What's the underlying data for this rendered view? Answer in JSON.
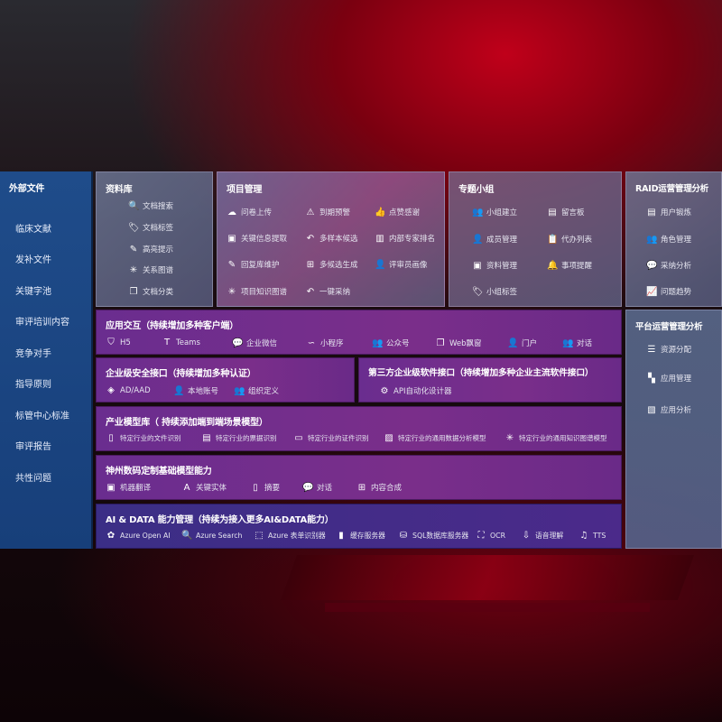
{
  "external": {
    "title": "外部文件",
    "items": [
      "临床文献",
      "发补文件",
      "关键字池",
      "审评培训内容",
      "竞争对手",
      "指导原则",
      "标管中心标准",
      "审评报告",
      "共性问题"
    ]
  },
  "library": {
    "title": "资料库",
    "items": [
      {
        "icon": "doc-search-icon",
        "label": "文档搜索"
      },
      {
        "icon": "tag-icon",
        "label": "文档标签"
      },
      {
        "icon": "pen-icon",
        "label": "高亮提示"
      },
      {
        "icon": "graph-icon",
        "label": "关系图谱"
      },
      {
        "icon": "doc-copy-icon",
        "label": "文档分类"
      }
    ]
  },
  "project": {
    "title": "项目管理",
    "items": [
      {
        "icon": "cloud-upload-icon",
        "label": "问卷上传"
      },
      {
        "icon": "alarm-icon",
        "label": "到期预警"
      },
      {
        "icon": "thumbs-up-icon",
        "label": "点赞感谢"
      },
      {
        "icon": "extract-icon",
        "label": "关键信息提取"
      },
      {
        "icon": "reply-icon",
        "label": "多样本候选"
      },
      {
        "icon": "ranking-icon",
        "label": "内部专家排名"
      },
      {
        "icon": "edit-icon",
        "label": "回复库维护"
      },
      {
        "icon": "puzzle-icon",
        "label": "多候选生成"
      },
      {
        "icon": "person-icon",
        "label": "评审员画像"
      },
      {
        "icon": "graph-icon",
        "label": "项目知识图谱"
      },
      {
        "icon": "reply-icon",
        "label": "一键采纳"
      }
    ]
  },
  "group": {
    "title": "专题小组",
    "items": [
      {
        "icon": "users-icon",
        "label": "小组建立"
      },
      {
        "icon": "bbs-icon",
        "label": "留言板"
      },
      {
        "icon": "user-add-icon",
        "label": "成员管理"
      },
      {
        "icon": "clipboard-icon",
        "label": "代办列表"
      },
      {
        "icon": "folder-icon",
        "label": "资料管理"
      },
      {
        "icon": "bell-icon",
        "label": "事项提醒"
      },
      {
        "icon": "tag-icon",
        "label": "小组标签"
      }
    ]
  },
  "raid": {
    "title": "RAID运营管理分析",
    "items": [
      {
        "icon": "id-card-icon",
        "label": "用户锻炼"
      },
      {
        "icon": "users-icon",
        "label": "角色管理"
      },
      {
        "icon": "qa-icon",
        "label": "采纳分析"
      },
      {
        "icon": "trend-icon",
        "label": "问题趋势"
      }
    ]
  },
  "platform": {
    "title": "平台运营管理分析",
    "items": [
      {
        "icon": "list-icon",
        "label": "资源分配"
      },
      {
        "icon": "apps-icon",
        "label": "应用管理"
      },
      {
        "icon": "analytics-icon",
        "label": "应用分析"
      }
    ]
  },
  "app": {
    "title": "应用交互（持续增加多种客户端）",
    "items": [
      {
        "icon": "html5-icon",
        "label": "H5"
      },
      {
        "icon": "teams-icon",
        "label": "Teams"
      },
      {
        "icon": "wechat-icon",
        "label": "企业微信"
      },
      {
        "icon": "miniprogram-icon",
        "label": "小程序"
      },
      {
        "icon": "users-icon",
        "label": "公众号"
      },
      {
        "icon": "window-icon",
        "label": "Web飘窗"
      },
      {
        "icon": "portal-icon",
        "label": "门户"
      },
      {
        "icon": "chat-users-icon",
        "label": "对话"
      }
    ]
  },
  "security": {
    "title": "企业级安全接口（持续增加多种认证）",
    "items": [
      {
        "icon": "ad-icon",
        "label": "AD/AAD"
      },
      {
        "icon": "user-lock-icon",
        "label": "本地账号"
      },
      {
        "icon": "org-icon",
        "label": "组织定义"
      }
    ]
  },
  "thirdparty": {
    "title": "第三方企业级软件接口（持续增加多种企业主流软件接口）",
    "items": [
      {
        "icon": "gear-icon",
        "label": "API自动化设计器"
      }
    ]
  },
  "industry": {
    "title": "产业模型库（ 持续添加端到端场景模型）",
    "items": [
      {
        "icon": "file-icon",
        "label": "特定行业的文件识别"
      },
      {
        "icon": "receipt-icon",
        "label": "特定行业的票据识别"
      },
      {
        "icon": "id-card-icon",
        "label": "特定行业的证件识别"
      },
      {
        "icon": "chart-icon",
        "label": "特定行业的通用数据分析模型"
      },
      {
        "icon": "graph-icon",
        "label": "特定行业的通用知识图谱模型"
      }
    ]
  },
  "base": {
    "title": "神州数码定制基础模型能力",
    "items": [
      {
        "icon": "translate-icon",
        "label": "机器翻译"
      },
      {
        "icon": "entity-icon",
        "label": "关键实体"
      },
      {
        "icon": "summary-icon",
        "label": "摘要"
      },
      {
        "icon": "chat-icon",
        "label": "对话"
      },
      {
        "icon": "puzzle-icon",
        "label": "内容合成"
      }
    ]
  },
  "ai": {
    "title": "AI & DATA 能力管理（持续为接入更多AI&DATA能力）",
    "items": [
      {
        "icon": "openai-icon",
        "label": "Azure Open AI"
      },
      {
        "icon": "search-icon",
        "label": "Azure Search"
      },
      {
        "icon": "form-icon",
        "label": "Azure 表单识别器"
      },
      {
        "icon": "cache-icon",
        "label": "缓存服务器"
      },
      {
        "icon": "database-icon",
        "label": "SQL数据库服务器"
      },
      {
        "icon": "ocr-icon",
        "label": "OCR"
      },
      {
        "icon": "speech-icon",
        "label": "语音理解"
      },
      {
        "icon": "tts-icon",
        "label": "TTS"
      }
    ]
  }
}
